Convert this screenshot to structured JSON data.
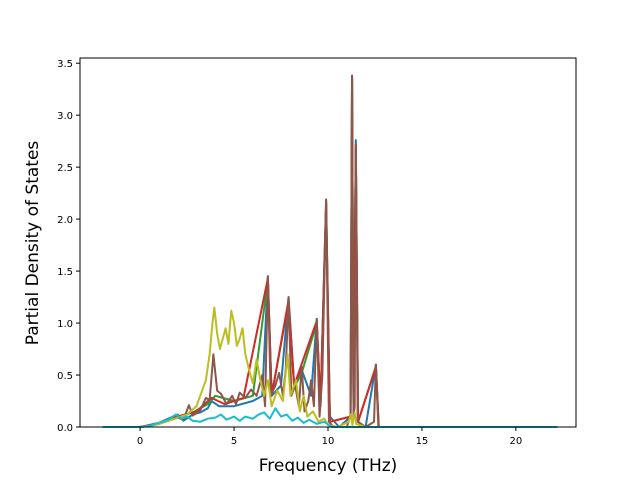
{
  "chart_data": {
    "type": "line",
    "title": "",
    "xlabel": "Frequency (THz)",
    "ylabel": "Partial Density of States",
    "xlim": [
      -3.2,
      23.2
    ],
    "ylim": [
      0,
      3.55
    ],
    "xticks": [
      0,
      5,
      10,
      15,
      20
    ],
    "yticks": [
      0.0,
      0.5,
      1.0,
      1.5,
      2.0,
      2.5,
      3.0,
      3.5
    ],
    "xtick_labels": [
      "0",
      "5",
      "10",
      "15",
      "20"
    ],
    "ytick_labels": [
      "0.0",
      "0.5",
      "1.0",
      "1.5",
      "2.0",
      "2.5",
      "3.0",
      "3.5"
    ],
    "grid": false,
    "legend": false,
    "series": [
      {
        "color": "#1f77b4",
        "points": [
          [
            -2.0,
            0
          ],
          [
            0.0,
            0.0
          ],
          [
            1.0,
            0.04
          ],
          [
            2.0,
            0.12
          ],
          [
            2.3,
            0.06
          ],
          [
            2.8,
            0.12
          ],
          [
            3.2,
            0.14
          ],
          [
            3.6,
            0.18
          ],
          [
            3.8,
            0.25
          ],
          [
            4.2,
            0.2
          ],
          [
            5.0,
            0.2
          ],
          [
            6.0,
            0.25
          ],
          [
            6.5,
            0.3
          ],
          [
            6.8,
            1.45
          ],
          [
            7.0,
            0.3
          ],
          [
            7.5,
            0.4
          ],
          [
            7.9,
            1.25
          ],
          [
            8.2,
            0.4
          ],
          [
            8.6,
            0.55
          ],
          [
            9.1,
            0.3
          ],
          [
            9.4,
            1.04
          ],
          [
            9.6,
            0.2
          ],
          [
            9.9,
            2.18
          ],
          [
            10.1,
            0.1
          ],
          [
            10.6,
            0.0
          ],
          [
            11.2,
            0.1
          ],
          [
            11.28,
            3.38
          ],
          [
            11.36,
            0.1
          ],
          [
            11.48,
            2.76
          ],
          [
            11.6,
            0.05
          ],
          [
            12.0,
            0.0
          ],
          [
            12.55,
            0.6
          ],
          [
            12.7,
            0.0
          ],
          [
            22.2,
            0.0
          ]
        ]
      },
      {
        "color": "#2ca02c",
        "points": [
          [
            -2.0,
            0
          ],
          [
            0.0,
            0.0
          ],
          [
            1.0,
            0.03
          ],
          [
            2.0,
            0.1
          ],
          [
            2.8,
            0.14
          ],
          [
            3.6,
            0.22
          ],
          [
            4.0,
            0.3
          ],
          [
            5.0,
            0.25
          ],
          [
            6.0,
            0.3
          ],
          [
            6.8,
            1.42
          ],
          [
            7.0,
            0.3
          ],
          [
            7.9,
            1.2
          ],
          [
            8.2,
            0.38
          ],
          [
            8.6,
            0.52
          ],
          [
            9.4,
            1.0
          ],
          [
            9.6,
            0.2
          ],
          [
            9.9,
            2.15
          ],
          [
            10.1,
            0.05
          ],
          [
            11.2,
            0.1
          ],
          [
            11.28,
            3.36
          ],
          [
            11.36,
            0.1
          ],
          [
            11.48,
            2.72
          ],
          [
            11.6,
            0.05
          ],
          [
            12.55,
            0.58
          ],
          [
            12.7,
            0.0
          ],
          [
            22.2,
            0.0
          ]
        ]
      },
      {
        "color": "#d62728",
        "points": [
          [
            -2.0,
            0
          ],
          [
            0.0,
            0.0
          ],
          [
            1.0,
            0.03
          ],
          [
            2.0,
            0.1
          ],
          [
            3.0,
            0.15
          ],
          [
            3.8,
            0.28
          ],
          [
            4.5,
            0.22
          ],
          [
            5.5,
            0.28
          ],
          [
            6.8,
            1.43
          ],
          [
            7.0,
            0.3
          ],
          [
            7.9,
            1.22
          ],
          [
            8.2,
            0.4
          ],
          [
            9.4,
            1.02
          ],
          [
            9.6,
            0.2
          ],
          [
            9.9,
            2.16
          ],
          [
            10.1,
            0.05
          ],
          [
            11.2,
            0.1
          ],
          [
            11.28,
            3.37
          ],
          [
            11.36,
            0.1
          ],
          [
            11.48,
            2.7
          ],
          [
            11.6,
            0.05
          ],
          [
            12.55,
            0.58
          ],
          [
            12.7,
            0.0
          ],
          [
            22.2,
            0.0
          ]
        ]
      },
      {
        "color": "#8c564b",
        "points": [
          [
            -2.0,
            0
          ],
          [
            0.0,
            0.0
          ],
          [
            0.5,
            0.01
          ],
          [
            1.0,
            0.03
          ],
          [
            1.5,
            0.06
          ],
          [
            2.0,
            0.09
          ],
          [
            2.3,
            0.07
          ],
          [
            2.6,
            0.21
          ],
          [
            2.8,
            0.11
          ],
          [
            3.2,
            0.16
          ],
          [
            3.5,
            0.28
          ],
          [
            3.7,
            0.26
          ],
          [
            3.9,
            0.7
          ],
          [
            4.1,
            0.35
          ],
          [
            4.3,
            0.32
          ],
          [
            4.6,
            0.22
          ],
          [
            4.9,
            0.3
          ],
          [
            5.1,
            0.22
          ],
          [
            5.3,
            0.33
          ],
          [
            5.6,
            0.28
          ],
          [
            5.9,
            0.36
          ],
          [
            6.2,
            0.3
          ],
          [
            6.5,
            0.5
          ],
          [
            6.65,
            0.2
          ],
          [
            6.8,
            1.45
          ],
          [
            6.95,
            0.3
          ],
          [
            7.2,
            0.4
          ],
          [
            7.4,
            0.52
          ],
          [
            7.6,
            0.3
          ],
          [
            7.75,
            0.55
          ],
          [
            7.9,
            1.25
          ],
          [
            8.05,
            0.3
          ],
          [
            8.25,
            0.4
          ],
          [
            8.45,
            0.2
          ],
          [
            8.6,
            0.58
          ],
          [
            8.75,
            0.15
          ],
          [
            8.95,
            0.25
          ],
          [
            9.1,
            0.45
          ],
          [
            9.25,
            0.2
          ],
          [
            9.4,
            1.04
          ],
          [
            9.55,
            0.1
          ],
          [
            9.7,
            0.5
          ],
          [
            9.9,
            2.19
          ],
          [
            10.05,
            0.05
          ],
          [
            10.3,
            0.0
          ],
          [
            11.0,
            0.0
          ],
          [
            11.2,
            0.12
          ],
          [
            11.28,
            3.38
          ],
          [
            11.36,
            0.1
          ],
          [
            11.42,
            0.2
          ],
          [
            11.48,
            2.72
          ],
          [
            11.58,
            0.05
          ],
          [
            12.0,
            0.0
          ],
          [
            12.45,
            0.05
          ],
          [
            12.55,
            0.6
          ],
          [
            12.68,
            0.0
          ],
          [
            22.2,
            0.0
          ]
        ]
      },
      {
        "color": "#bcbd22",
        "points": [
          [
            -2.0,
            0
          ],
          [
            0.0,
            0.0
          ],
          [
            0.5,
            0.01
          ],
          [
            1.0,
            0.03
          ],
          [
            1.5,
            0.06
          ],
          [
            2.0,
            0.09
          ],
          [
            2.5,
            0.12
          ],
          [
            3.0,
            0.2
          ],
          [
            3.2,
            0.3
          ],
          [
            3.5,
            0.45
          ],
          [
            3.7,
            0.7
          ],
          [
            3.85,
            1.0
          ],
          [
            3.95,
            1.15
          ],
          [
            4.1,
            0.9
          ],
          [
            4.25,
            0.75
          ],
          [
            4.4,
            0.85
          ],
          [
            4.55,
            0.95
          ],
          [
            4.7,
            0.8
          ],
          [
            4.85,
            1.12
          ],
          [
            5.0,
            1.0
          ],
          [
            5.15,
            0.78
          ],
          [
            5.3,
            0.85
          ],
          [
            5.45,
            0.95
          ],
          [
            5.6,
            0.7
          ],
          [
            5.8,
            0.55
          ],
          [
            6.0,
            0.42
          ],
          [
            6.2,
            0.65
          ],
          [
            6.4,
            0.45
          ],
          [
            6.6,
            0.3
          ],
          [
            6.8,
            0.45
          ],
          [
            7.0,
            0.2
          ],
          [
            7.3,
            0.35
          ],
          [
            7.6,
            0.25
          ],
          [
            7.85,
            0.7
          ],
          [
            8.0,
            0.3
          ],
          [
            8.3,
            0.45
          ],
          [
            8.5,
            0.15
          ],
          [
            8.7,
            0.3
          ],
          [
            8.9,
            0.1
          ],
          [
            9.2,
            0.15
          ],
          [
            9.5,
            0.05
          ],
          [
            9.8,
            0.08
          ],
          [
            10.0,
            0.02
          ],
          [
            10.5,
            0.0
          ],
          [
            11.1,
            0.05
          ],
          [
            11.22,
            0.12
          ],
          [
            11.3,
            0.02
          ],
          [
            11.42,
            0.14
          ],
          [
            11.5,
            0.03
          ],
          [
            12.0,
            0.0
          ],
          [
            22.2,
            0.0
          ]
        ]
      },
      {
        "color": "#17becf",
        "points": [
          [
            -2.0,
            0
          ],
          [
            0.0,
            0.0
          ],
          [
            0.5,
            0.01
          ],
          [
            1.0,
            0.04
          ],
          [
            1.5,
            0.07
          ],
          [
            1.9,
            0.12
          ],
          [
            2.2,
            0.08
          ],
          [
            2.5,
            0.1
          ],
          [
            2.8,
            0.06
          ],
          [
            3.2,
            0.05
          ],
          [
            3.6,
            0.08
          ],
          [
            4.0,
            0.09
          ],
          [
            4.3,
            0.12
          ],
          [
            4.6,
            0.07
          ],
          [
            5.0,
            0.1
          ],
          [
            5.3,
            0.06
          ],
          [
            5.6,
            0.1
          ],
          [
            6.0,
            0.08
          ],
          [
            6.3,
            0.12
          ],
          [
            6.6,
            0.14
          ],
          [
            6.9,
            0.08
          ],
          [
            7.2,
            0.18
          ],
          [
            7.5,
            0.1
          ],
          [
            7.8,
            0.12
          ],
          [
            8.1,
            0.06
          ],
          [
            8.4,
            0.09
          ],
          [
            8.7,
            0.04
          ],
          [
            9.0,
            0.07
          ],
          [
            9.4,
            0.03
          ],
          [
            9.8,
            0.05
          ],
          [
            10.2,
            0.0
          ],
          [
            22.2,
            0.0
          ]
        ]
      }
    ]
  }
}
